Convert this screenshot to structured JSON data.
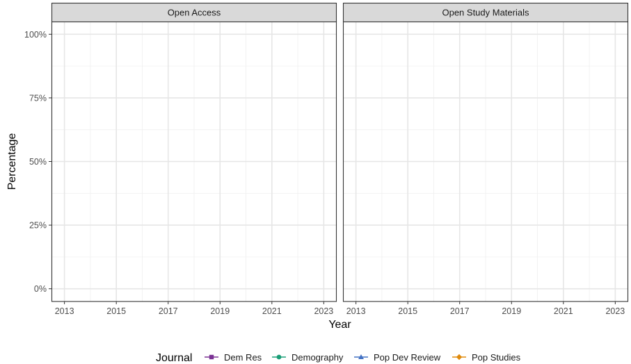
{
  "chart_data": {
    "type": "line",
    "facets": [
      "Open Access",
      "Open Study Materials"
    ],
    "x": [
      2013,
      2015,
      2017,
      2019,
      2021,
      2023
    ],
    "xlim": [
      2012.5,
      2023.5
    ],
    "xticks_major": [
      2013,
      2015,
      2017,
      2019,
      2021,
      2023
    ],
    "xticks_minor": [
      2014,
      2016,
      2018,
      2020,
      2022
    ],
    "y_ticks": [
      {
        "value": 0,
        "label": "0%"
      },
      {
        "value": 25,
        "label": "25%"
      },
      {
        "value": 50,
        "label": "50%"
      },
      {
        "value": 75,
        "label": "75%"
      },
      {
        "value": 100,
        "label": "100%"
      }
    ],
    "ylim": [
      -5,
      105
    ],
    "xlabel": "Year",
    "ylabel": "Percentage",
    "grid": true,
    "legend": {
      "title": "Journal",
      "position": "bottom",
      "entries": [
        {
          "name": "Dem Res",
          "color": "#7b3294",
          "shape": "square"
        },
        {
          "name": "Demography",
          "color": "#1a9e77",
          "shape": "circle"
        },
        {
          "name": "Pop Dev Review",
          "color": "#4472c4",
          "shape": "triangle"
        },
        {
          "name": "Pop Studies",
          "color": "#e08a0b",
          "shape": "diamond"
        }
      ]
    },
    "series": []
  }
}
